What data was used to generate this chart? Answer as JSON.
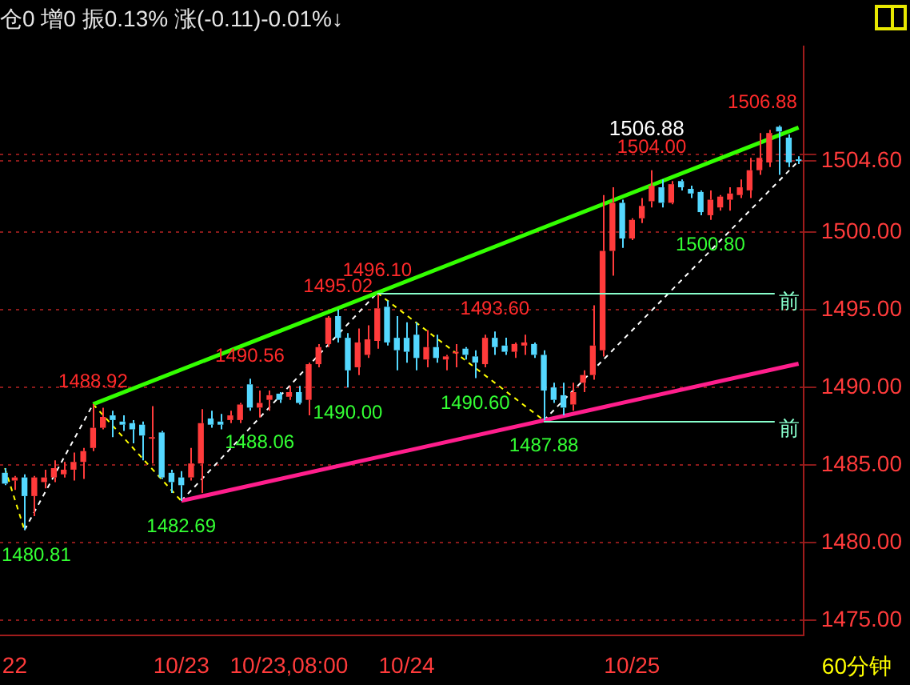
{
  "chart_data": {
    "type": "candlestick",
    "title": "仓0 增0 振0.13% 涨(-0.11)-0.01%↓",
    "categories": [
      null,
      "22",
      null,
      null,
      null,
      null,
      null,
      null,
      null,
      null,
      null,
      null,
      null,
      null,
      null,
      null,
      null,
      null,
      "10/23",
      null,
      null,
      null,
      null,
      null,
      null,
      null,
      null,
      null,
      null,
      "10/23,08:00",
      null,
      null,
      null,
      null,
      null,
      null,
      null,
      null,
      null,
      null,
      null,
      "10/24",
      null,
      null,
      null,
      null,
      null,
      null,
      null,
      null,
      null,
      null,
      null,
      null,
      null,
      null,
      null,
      null,
      null,
      null,
      null,
      null,
      null,
      null,
      "10/25",
      null,
      null,
      null,
      null,
      null,
      null,
      null,
      null,
      null,
      null,
      null,
      null,
      null,
      null,
      null,
      null,
      null
    ],
    "ohlc": [
      [
        1484.5,
        1484.8,
        1483.7,
        1483.8
      ],
      [
        1484.0,
        1484.3,
        1483.4,
        1484.2
      ],
      [
        1484.2,
        1484.4,
        1480.81,
        1483.0
      ],
      [
        1483.0,
        1484.3,
        1481.7,
        1484.2
      ],
      [
        1483.9,
        1484.7,
        1483.5,
        1484.2
      ],
      [
        1484.2,
        1485.3,
        1483.9,
        1484.8
      ],
      [
        1484.4,
        1485.2,
        1484.2,
        1484.7
      ],
      [
        1484.7,
        1485.8,
        1484.0,
        1485.2
      ],
      [
        1485.2,
        1486.1,
        1484.1,
        1485.9
      ],
      [
        1486.1,
        1488.92,
        1485.9,
        1487.4
      ],
      [
        1487.4,
        1488.7,
        1487.3,
        1488.1
      ],
      [
        1488.2,
        1488.5,
        1486.8,
        1487.9
      ],
      [
        1487.8,
        1488.2,
        1487.2,
        1487.6
      ],
      [
        1487.7,
        1487.9,
        1486.4,
        1487.3
      ],
      [
        1487.6,
        1487.8,
        1485.3,
        1486.9
      ],
      [
        1486.7,
        1488.8,
        1485.1,
        1486.8
      ],
      [
        1487.1,
        1487.2,
        1484.1,
        1484.2
      ],
      [
        1484.5,
        1484.7,
        1483.2,
        1483.9
      ],
      [
        1484.2,
        1484.6,
        1482.69,
        1483.7
      ],
      [
        1484.2,
        1486.1,
        1484.0,
        1485.1
      ],
      [
        1485.1,
        1488.6,
        1483.2,
        1487.7
      ],
      [
        1488.0,
        1488.5,
        1487.4,
        1487.6
      ],
      [
        1487.8,
        1488.3,
        1487.3,
        1487.6
      ],
      [
        1487.9,
        1488.5,
        1487.7,
        1488.2
      ],
      [
        1487.9,
        1489.0,
        1487.7,
        1488.9
      ],
      [
        1490.2,
        1490.56,
        1488.5,
        1488.7
      ],
      [
        1488.7,
        1489.8,
        1488.06,
        1489.0
      ],
      [
        1489.2,
        1489.8,
        1488.5,
        1489.5
      ],
      [
        1489.6,
        1489.7,
        1489.0,
        1489.2
      ],
      [
        1489.4,
        1490.1,
        1489.2,
        1489.7
      ],
      [
        1489.7,
        1490.1,
        1488.9,
        1489.0
      ],
      [
        1489.2,
        1491.6,
        1488.2,
        1491.5
      ],
      [
        1491.5,
        1492.8,
        1491.3,
        1492.6
      ],
      [
        1492.8,
        1494.6,
        1492.6,
        1494.5
      ],
      [
        1494.6,
        1495.02,
        1492.9,
        1493.2
      ],
      [
        1493.2,
        1493.5,
        1490.0,
        1491.1
      ],
      [
        1491.3,
        1493.8,
        1490.8,
        1492.9
      ],
      [
        1492.1,
        1494.0,
        1491.9,
        1493.1
      ],
      [
        1493.0,
        1496.1,
        1492.5,
        1495.1
      ],
      [
        1495.2,
        1495.6,
        1492.7,
        1492.9
      ],
      [
        1493.2,
        1494.6,
        1491.1,
        1492.4
      ],
      [
        1493.2,
        1494.2,
        1491.6,
        1492.3
      ],
      [
        1493.4,
        1494.2,
        1491.1,
        1491.9
      ],
      [
        1491.8,
        1493.7,
        1491.3,
        1492.6
      ],
      [
        1492.6,
        1493.4,
        1491.6,
        1491.9
      ],
      [
        1491.8,
        1492.1,
        1491.1,
        1492.0
      ],
      [
        1492.2,
        1492.8,
        1491.3,
        1492.3
      ],
      [
        1492.5,
        1492.6,
        1491.8,
        1492.1
      ],
      [
        1492.0,
        1492.4,
        1490.6,
        1491.6
      ],
      [
        1491.5,
        1493.4,
        1491.3,
        1493.2
      ],
      [
        1493.2,
        1493.6,
        1492.1,
        1492.6
      ],
      [
        1492.7,
        1493.2,
        1492.1,
        1492.3
      ],
      [
        1492.3,
        1492.9,
        1491.9,
        1492.8
      ],
      [
        1492.7,
        1493.4,
        1492.1,
        1492.9
      ],
      [
        1492.8,
        1492.9,
        1491.9,
        1492.1
      ],
      [
        1492.1,
        1492.4,
        1487.88,
        1489.8
      ],
      [
        1490.0,
        1490.3,
        1489.0,
        1489.2
      ],
      [
        1489.5,
        1490.3,
        1488.2,
        1488.7
      ],
      [
        1488.9,
        1490.3,
        1488.5,
        1489.7
      ],
      [
        1490.3,
        1491.1,
        1489.7,
        1490.8
      ],
      [
        1490.8,
        1495.3,
        1490.5,
        1492.7
      ],
      [
        1492.4,
        1502.4,
        1492.0,
        1498.8
      ],
      [
        1498.8,
        1502.9,
        1497.2,
        1501.9
      ],
      [
        1501.9,
        1502.1,
        1499.0,
        1499.6
      ],
      [
        1499.6,
        1500.9,
        1499.5,
        1500.8
      ],
      [
        1500.9,
        1502.2,
        1500.6,
        1501.7
      ],
      [
        1502.0,
        1504.0,
        1501.6,
        1503.0
      ],
      [
        1502.9,
        1503.4,
        1501.6,
        1501.9
      ],
      [
        1501.9,
        1503.3,
        1501.8,
        1503.1
      ],
      [
        1503.3,
        1503.4,
        1502.7,
        1502.9
      ],
      [
        1502.8,
        1503.0,
        1502.2,
        1502.5
      ],
      [
        1502.6,
        1502.7,
        1501.1,
        1501.3
      ],
      [
        1501.1,
        1502.7,
        1500.8,
        1502.1
      ],
      [
        1501.6,
        1502.4,
        1501.4,
        1502.3
      ],
      [
        1502.1,
        1502.9,
        1501.4,
        1502.5
      ],
      [
        1502.4,
        1503.4,
        1502.2,
        1502.9
      ],
      [
        1502.7,
        1504.8,
        1502.2,
        1504.0
      ],
      [
        1504.0,
        1506.4,
        1503.7,
        1504.8
      ],
      [
        1504.5,
        1506.6,
        1504.2,
        1506.4
      ],
      [
        1506.8,
        1506.88,
        1503.7,
        1506.5
      ],
      [
        1506.1,
        1506.3,
        1504.2,
        1504.5
      ],
      [
        1504.7,
        1504.9,
        1504.4,
        1504.6
      ]
    ],
    "colors": [
      "#54d8ff",
      "#ff3b3b",
      "#54d8ff",
      "#ff3b3b",
      "#ff3b3b",
      "#ff3b3b",
      "#ff3b3b",
      "#ff3b3b",
      "#ff3b3b",
      "#ff3b3b",
      "#ff3b3b",
      "#54d8ff",
      "#54d8ff",
      "#54d8ff",
      "#54d8ff",
      "#ff3b3b",
      "#54d8ff",
      "#54d8ff",
      "#54d8ff",
      "#ff3b3b",
      "#ff3b3b",
      "#54d8ff",
      "#54d8ff",
      "#ff3b3b",
      "#ff3b3b",
      "#54d8ff",
      "#ff3b3b",
      "#ff3b3b",
      "#54d8ff",
      "#ff3b3b",
      "#54d8ff",
      "#ff3b3b",
      "#ff3b3b",
      "#ff3b3b",
      "#54d8ff",
      "#54d8ff",
      "#ff3b3b",
      "#ff3b3b",
      "#ff3b3b",
      "#54d8ff",
      "#54d8ff",
      "#54d8ff",
      "#54d8ff",
      "#ff3b3b",
      "#54d8ff",
      "#ff3b3b",
      "#ff3b3b",
      "#54d8ff",
      "#54d8ff",
      "#ff3b3b",
      "#54d8ff",
      "#54d8ff",
      "#ff3b3b",
      "#ff3b3b",
      "#54d8ff",
      "#54d8ff",
      "#54d8ff",
      "#54d8ff",
      "#ff3b3b",
      "#ff3b3b",
      "#ff3b3b",
      "#ff3b3b",
      "#ff3b3b",
      "#54d8ff",
      "#ff3b3b",
      "#ff3b3b",
      "#ff3b3b",
      "#54d8ff",
      "#ff3b3b",
      "#54d8ff",
      "#54d8ff",
      "#54d8ff",
      "#ff3b3b",
      "#ff3b3b",
      "#ff3b3b",
      "#ff3b3b",
      "#ff3b3b",
      "#ff3b3b",
      "#ff3b3b",
      "#54d8ff",
      "#54d8ff",
      "#54d8ff"
    ],
    "series": [
      {
        "type": "line",
        "color": "#33ff00",
        "line_style": "solid",
        "values": [
          null,
          null,
          null,
          null,
          null,
          null,
          null,
          null,
          null,
          1488.92,
          null,
          null,
          null,
          null,
          null,
          null,
          null,
          null,
          null,
          null,
          null,
          null,
          null,
          null,
          null,
          null,
          null,
          null,
          null,
          null,
          null,
          null,
          null,
          null,
          null,
          null,
          null,
          null,
          null,
          null,
          null,
          null,
          null,
          null,
          null,
          null,
          null,
          null,
          null,
          null,
          null,
          null,
          null,
          null,
          null,
          null,
          null,
          null,
          null,
          null,
          null,
          null,
          null,
          null,
          null,
          null,
          null,
          null,
          null,
          null,
          null,
          null,
          null,
          null,
          null,
          null,
          null,
          null,
          null,
          null,
          null,
          1506.75
        ]
      },
      {
        "type": "line",
        "color": "#ff1e8c",
        "line_style": "solid",
        "values": [
          null,
          null,
          null,
          null,
          null,
          null,
          null,
          null,
          null,
          null,
          null,
          null,
          null,
          null,
          null,
          null,
          null,
          null,
          1482.69,
          null,
          null,
          null,
          null,
          null,
          null,
          null,
          null,
          null,
          null,
          null,
          null,
          null,
          null,
          null,
          null,
          null,
          null,
          null,
          null,
          null,
          null,
          null,
          null,
          null,
          null,
          null,
          null,
          null,
          null,
          null,
          null,
          null,
          null,
          null,
          null,
          null,
          null,
          null,
          null,
          null,
          null,
          null,
          null,
          null,
          null,
          null,
          null,
          null,
          null,
          null,
          null,
          null,
          null,
          null,
          null,
          null,
          null,
          null,
          null,
          null,
          null,
          1491.53
        ]
      },
      {
        "type": "line",
        "color": "#ffff00",
        "line_style": "dashed",
        "values": [
          1484.8,
          null,
          1480.81,
          null,
          null,
          null,
          null,
          null,
          null,
          null,
          null,
          null,
          null,
          null,
          null,
          null,
          null,
          null,
          null,
          null,
          null,
          null,
          null,
          null,
          null,
          null,
          null,
          null,
          null,
          null,
          null,
          null,
          null,
          null,
          null,
          null,
          null,
          null,
          null,
          null,
          null,
          null,
          null,
          null,
          null,
          null,
          null,
          null,
          null,
          null,
          null,
          null,
          null,
          null,
          null,
          null,
          null,
          null,
          null,
          null,
          null,
          null,
          null,
          null,
          null,
          null,
          null,
          null,
          null,
          null,
          null,
          null,
          null,
          null,
          null,
          null,
          null,
          null,
          null,
          null,
          null,
          null
        ]
      },
      {
        "type": "line",
        "color": "#ffffff",
        "line_style": "dashed",
        "values": [
          null,
          null,
          1480.81,
          null,
          null,
          null,
          null,
          null,
          null,
          1488.92,
          null,
          null,
          null,
          null,
          null,
          null,
          null,
          null,
          null,
          null,
          null,
          null,
          null,
          null,
          null,
          null,
          null,
          null,
          null,
          null,
          null,
          null,
          null,
          null,
          null,
          null,
          null,
          null,
          null,
          null,
          null,
          null,
          null,
          null,
          null,
          null,
          null,
          null,
          null,
          null,
          null,
          null,
          null,
          null,
          null,
          null,
          null,
          null,
          null,
          null,
          null,
          null,
          null,
          null,
          null,
          null,
          null,
          null,
          null,
          null,
          null,
          null,
          null,
          null,
          null,
          null,
          null,
          null,
          null,
          null,
          null,
          null
        ]
      },
      {
        "type": "line",
        "color": "#ffff00",
        "line_style": "dashed",
        "values": [
          null,
          null,
          null,
          null,
          null,
          null,
          null,
          null,
          null,
          1488.92,
          null,
          null,
          null,
          null,
          null,
          null,
          null,
          null,
          1482.69,
          null,
          null,
          null,
          null,
          null,
          null,
          null,
          null,
          null,
          null,
          null,
          null,
          null,
          null,
          null,
          null,
          null,
          null,
          null,
          null,
          null,
          null,
          null,
          null,
          null,
          null,
          null,
          null,
          null,
          null,
          null,
          null,
          null,
          null,
          null,
          null,
          null,
          null,
          null,
          null,
          null,
          null,
          null,
          null,
          null,
          null,
          null,
          null,
          null,
          null,
          null,
          null,
          null,
          null,
          null,
          null,
          null,
          null,
          null,
          null,
          null,
          null,
          null
        ]
      },
      {
        "type": "line",
        "color": "#ffffff",
        "line_style": "dashed",
        "values": [
          null,
          null,
          null,
          null,
          null,
          null,
          null,
          null,
          null,
          null,
          null,
          null,
          null,
          null,
          null,
          null,
          null,
          null,
          1482.69,
          null,
          null,
          null,
          null,
          null,
          null,
          null,
          null,
          null,
          null,
          null,
          null,
          null,
          null,
          null,
          null,
          null,
          null,
          null,
          1496.1,
          null,
          null,
          null,
          null,
          null,
          null,
          null,
          null,
          null,
          null,
          null,
          null,
          null,
          null,
          null,
          null,
          null,
          null,
          null,
          null,
          null,
          null,
          null,
          null,
          null,
          null,
          null,
          null,
          null,
          null,
          null,
          null,
          null,
          null,
          null,
          null,
          null,
          null,
          null,
          null,
          null,
          null,
          null
        ]
      },
      {
        "type": "line",
        "color": "#ffff00",
        "line_style": "dashed",
        "values": [
          null,
          null,
          null,
          null,
          null,
          null,
          null,
          null,
          null,
          null,
          null,
          null,
          null,
          null,
          null,
          null,
          null,
          null,
          null,
          null,
          null,
          null,
          null,
          null,
          null,
          null,
          null,
          null,
          null,
          null,
          null,
          null,
          null,
          null,
          null,
          null,
          null,
          null,
          1496.1,
          null,
          null,
          null,
          null,
          null,
          null,
          null,
          null,
          null,
          null,
          null,
          null,
          null,
          null,
          null,
          null,
          1487.88,
          null,
          null,
          null,
          null,
          null,
          null,
          null,
          null,
          null,
          null,
          null,
          null,
          null,
          null,
          null,
          null,
          null,
          null,
          null,
          null,
          null,
          null,
          null,
          null,
          null,
          null
        ]
      },
      {
        "type": "line",
        "color": "#ffffff",
        "line_style": "dashed",
        "values": [
          null,
          null,
          null,
          null,
          null,
          null,
          null,
          null,
          null,
          null,
          null,
          null,
          null,
          null,
          null,
          null,
          null,
          null,
          null,
          null,
          null,
          null,
          null,
          null,
          null,
          null,
          null,
          null,
          null,
          null,
          null,
          null,
          null,
          null,
          null,
          null,
          null,
          null,
          null,
          null,
          null,
          null,
          null,
          null,
          null,
          null,
          null,
          null,
          null,
          null,
          null,
          null,
          null,
          null,
          null,
          1487.88,
          null,
          null,
          null,
          null,
          null,
          null,
          null,
          null,
          null,
          null,
          null,
          null,
          null,
          null,
          null,
          null,
          null,
          null,
          null,
          null,
          null,
          null,
          null,
          null,
          null,
          1504.6
        ]
      }
    ],
    "ylim": [
      1474,
      1512
    ],
    "yticks": [
      {
        "value": 1475,
        "label": "1475.00"
      },
      {
        "value": 1480,
        "label": "1480.00"
      },
      {
        "value": 1485,
        "label": "1485.00"
      },
      {
        "value": 1490,
        "label": "1490.00"
      },
      {
        "value": 1495,
        "label": "1495.00"
      },
      {
        "value": 1500,
        "label": "1500.00"
      },
      {
        "value": 1504.6,
        "label": "1504.60"
      },
      {
        "value": 1505,
        "label": null
      }
    ],
    "grid": "y",
    "legend": false,
    "ref_lines": [
      {
        "axis": "y",
        "value": 1496.1,
        "label": "前",
        "color": "#88ffcc"
      },
      {
        "axis": "y",
        "value": 1487.88,
        "label": "前",
        "color": "#88ffcc"
      }
    ],
    "annotations": [
      {
        "text": "1488.92",
        "y": 1488.92
      },
      {
        "text": "1490.56",
        "y": 1490.56
      },
      {
        "text": "1495.02",
        "y": 1495.02
      },
      {
        "text": "1496.10",
        "y": 1496.1
      },
      {
        "text": "1493.60",
        "y": 1493.6
      },
      {
        "text": "1504.00",
        "y": 1504.0
      },
      "1506.88",
      "1506.88",
      "1480.81",
      {
        "text": "1482.69",
        "y": 1482.69
      },
      {
        "text": "1488.06",
        "y": 1488.06
      },
      {
        "text": "1490.00",
        "y": 1490.0
      },
      {
        "text": "1490.60",
        "y": 1490.6
      },
      {
        "text": "1487.88",
        "y": 1487.88
      },
      {
        "text": "1500.80",
        "y": 1500.8
      }
    ],
    "subtitle": "60分钟"
  }
}
